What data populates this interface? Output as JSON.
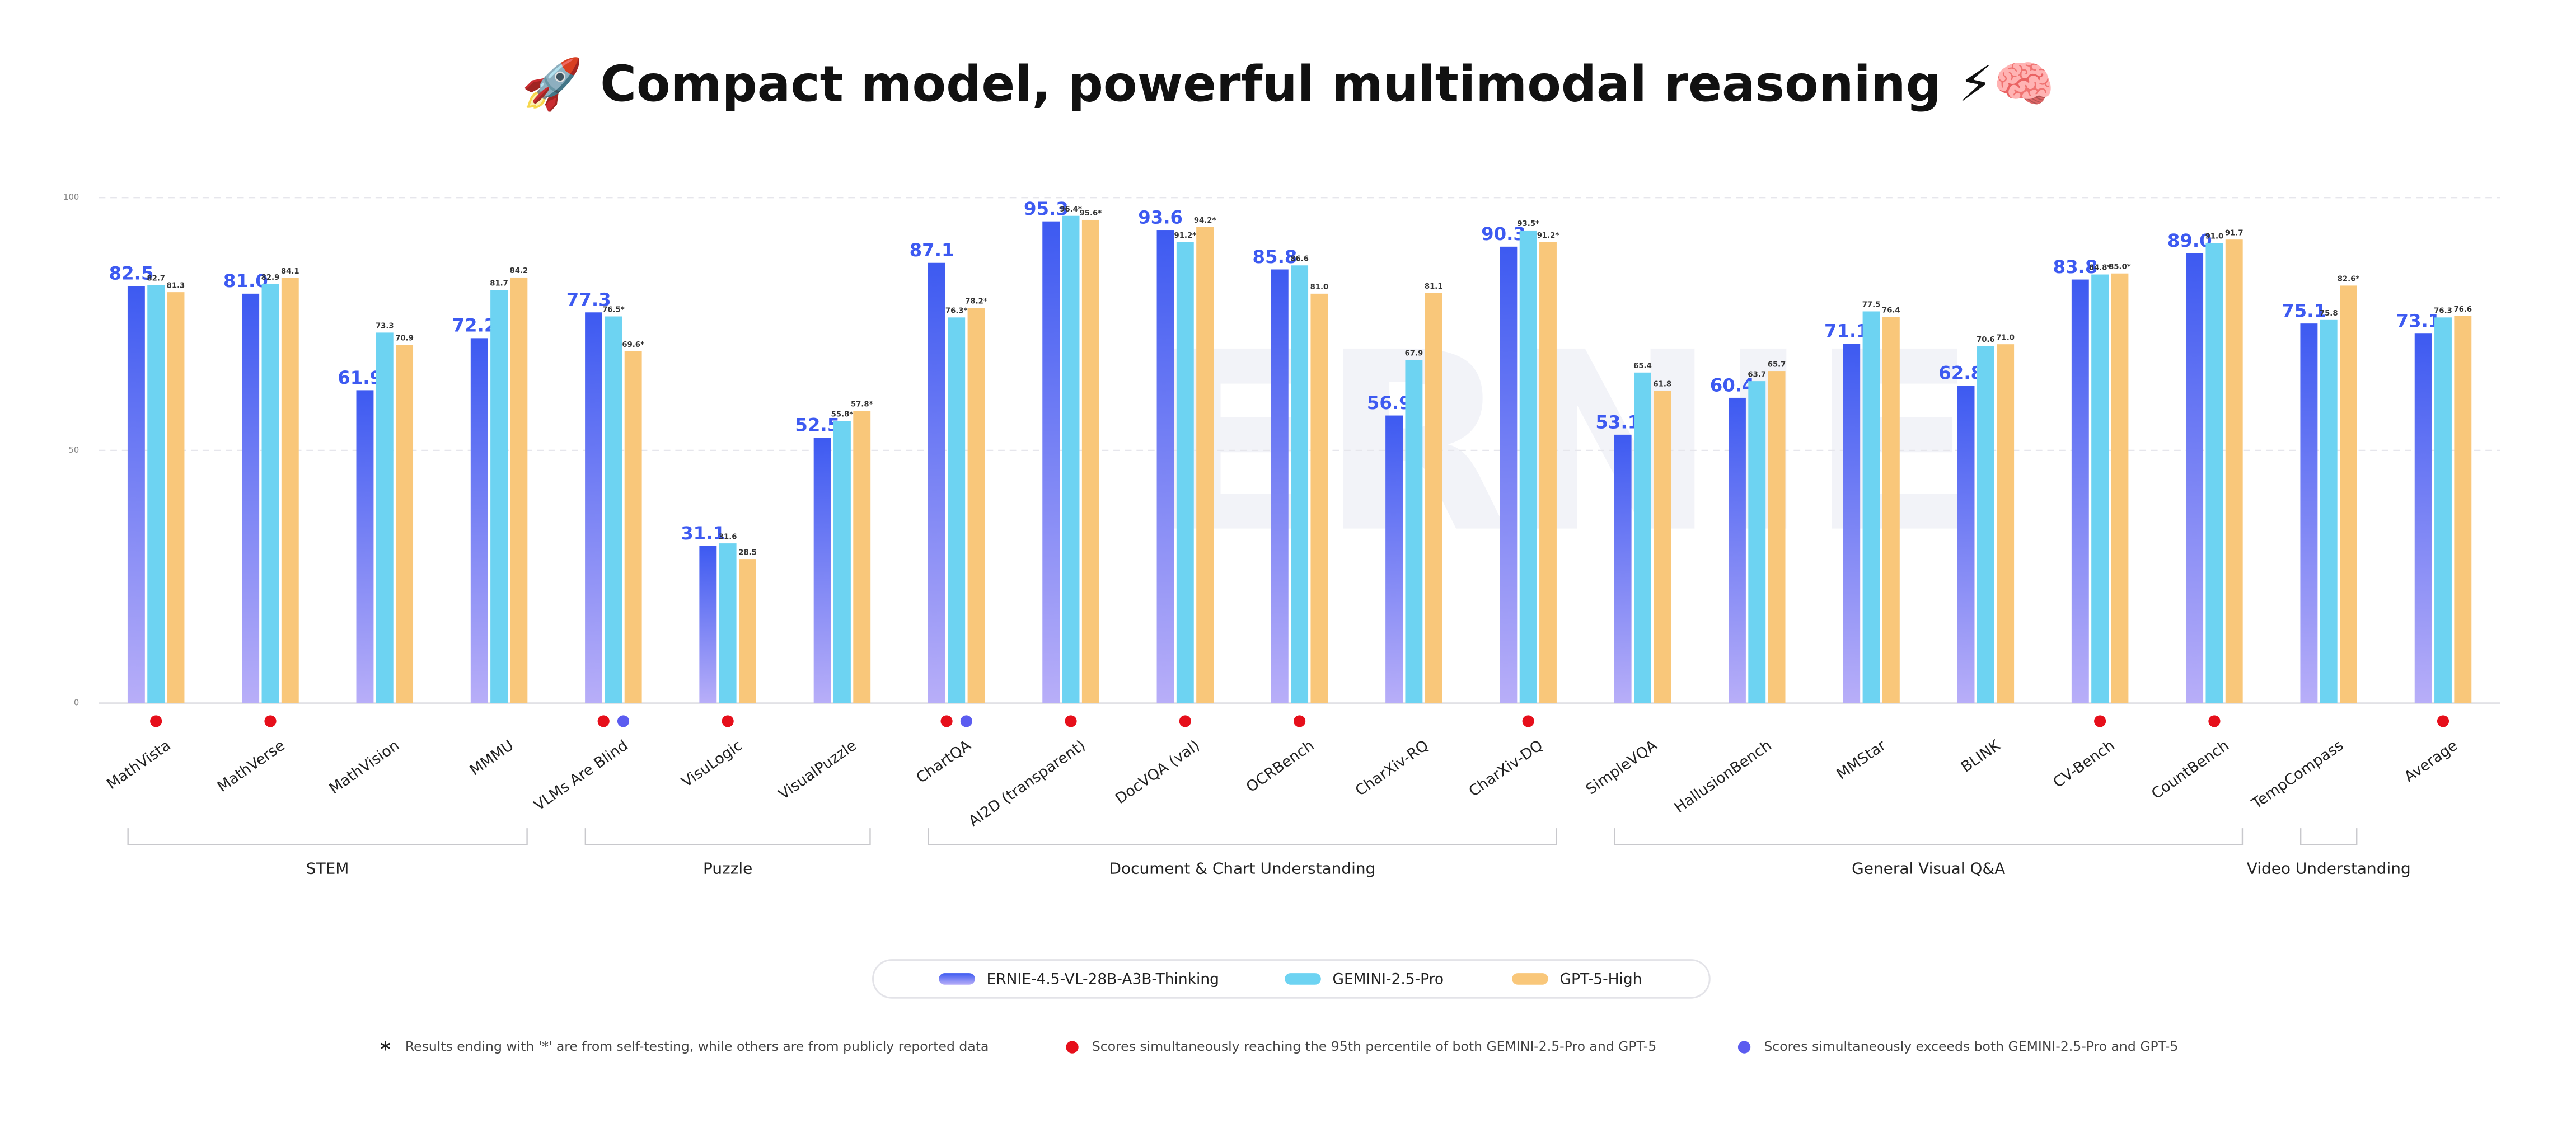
{
  "chart_data": {
    "type": "bar",
    "title": "🚀 Compact model, powerful multimodal reasoning ⚡🧠",
    "watermark": "ERNIE",
    "categories": [
      "MathVista",
      "MathVerse",
      "MathVision",
      "MMMU",
      "VLMs Are Blind",
      "VisuLogic",
      "VisualPuzzle",
      "ChartQA",
      "AI2D (transparent)",
      "DocVQA (val)",
      "OCRBench",
      "CharXiv-RQ",
      "CharXiv-DQ",
      "SimpleVQA",
      "HallusionBench",
      "MMStar",
      "BLINK",
      "CV-Bench",
      "CountBench",
      "TempCompass",
      "Average"
    ],
    "series": [
      {
        "name": "ERNIE-4.5-VL-28B-A3B-Thinking",
        "color": "#3d5af1",
        "gradient": [
          "#3d5af1",
          "#b8aef8"
        ],
        "values": [
          82.5,
          81.0,
          61.9,
          72.2,
          77.3,
          31.1,
          52.5,
          87.1,
          95.3,
          93.6,
          85.8,
          56.9,
          90.3,
          53.1,
          60.4,
          71.1,
          62.8,
          83.8,
          89.0,
          75.1,
          73.1
        ],
        "value_labels": [
          "82.5",
          "81.0",
          "61.9",
          "72.2",
          "77.3",
          "31.1",
          "52.5",
          "87.1",
          "95.3",
          "93.6",
          "85.8",
          "56.9",
          "90.3",
          "53.1",
          "60.4",
          "71.1",
          "62.8",
          "83.8",
          "89.0",
          "75.1",
          "73.1"
        ]
      },
      {
        "name": "GEMINI-2.5-Pro",
        "color": "#6dd3f2",
        "values": [
          82.7,
          82.9,
          73.3,
          81.7,
          76.5,
          31.6,
          55.8,
          76.3,
          96.4,
          91.2,
          86.6,
          67.9,
          93.5,
          65.4,
          63.7,
          77.5,
          70.6,
          84.8,
          91.0,
          75.8,
          76.3
        ],
        "value_labels": [
          "82.7",
          "82.9",
          "73.3",
          "81.7",
          "76.5*",
          "31.6",
          "55.8*",
          "76.3*",
          "96.4*",
          "91.2*",
          "86.6",
          "67.9",
          "93.5*",
          "65.4",
          "63.7",
          "77.5",
          "70.6",
          "84.8*",
          "91.0",
          "75.8",
          "76.3"
        ]
      },
      {
        "name": "GPT-5-High",
        "color": "#f9c77a",
        "values": [
          81.3,
          84.1,
          70.9,
          84.2,
          69.6,
          28.5,
          57.8,
          78.2,
          95.6,
          94.2,
          81.0,
          81.1,
          91.2,
          61.8,
          65.7,
          76.4,
          71.0,
          85.0,
          91.7,
          82.6,
          76.6
        ],
        "value_labels": [
          "81.3",
          "84.1",
          "70.9",
          "84.2",
          "69.6*",
          "28.5",
          "57.8*",
          "78.2*",
          "95.6*",
          "94.2*",
          "81.0",
          "81.1",
          "91.2*",
          "61.8",
          "65.7",
          "76.4",
          "71.0",
          "85.0*",
          "91.7",
          "82.6*",
          "76.6"
        ]
      }
    ],
    "groups": [
      {
        "label": "STEM",
        "start": 0,
        "end": 3
      },
      {
        "label": "Puzzle",
        "start": 4,
        "end": 6
      },
      {
        "label": "Document & Chart Understanding",
        "start": 7,
        "end": 12
      },
      {
        "label": "General Visual Q&A",
        "start": 13,
        "end": 18
      },
      {
        "label": "Video Understanding",
        "start": 19,
        "end": 19
      }
    ],
    "notes": [
      {
        "symbol": "*",
        "text": "Results ending with '*' are from self-testing, while others are from publicly reported data"
      },
      {
        "color": "#e60f1b",
        "text": "Scores simultaneously reaching the 95th percentile of both GEMINI-2.5-Pro and GPT-5",
        "flags": [
          true,
          true,
          false,
          false,
          true,
          true,
          false,
          true,
          true,
          true,
          true,
          false,
          true,
          false,
          false,
          false,
          false,
          true,
          true,
          false,
          true
        ]
      },
      {
        "color": "#5b5cf0",
        "text": "Scores simultaneously exceeds both GEMINI-2.5-Pro and GPT-5",
        "flags": [
          false,
          false,
          false,
          false,
          true,
          false,
          false,
          true,
          false,
          false,
          false,
          false,
          false,
          false,
          false,
          false,
          false,
          false,
          false,
          false,
          false
        ]
      }
    ],
    "ylim": [
      0,
      100
    ],
    "yticks": [
      0,
      50,
      100
    ],
    "grid": true
  }
}
